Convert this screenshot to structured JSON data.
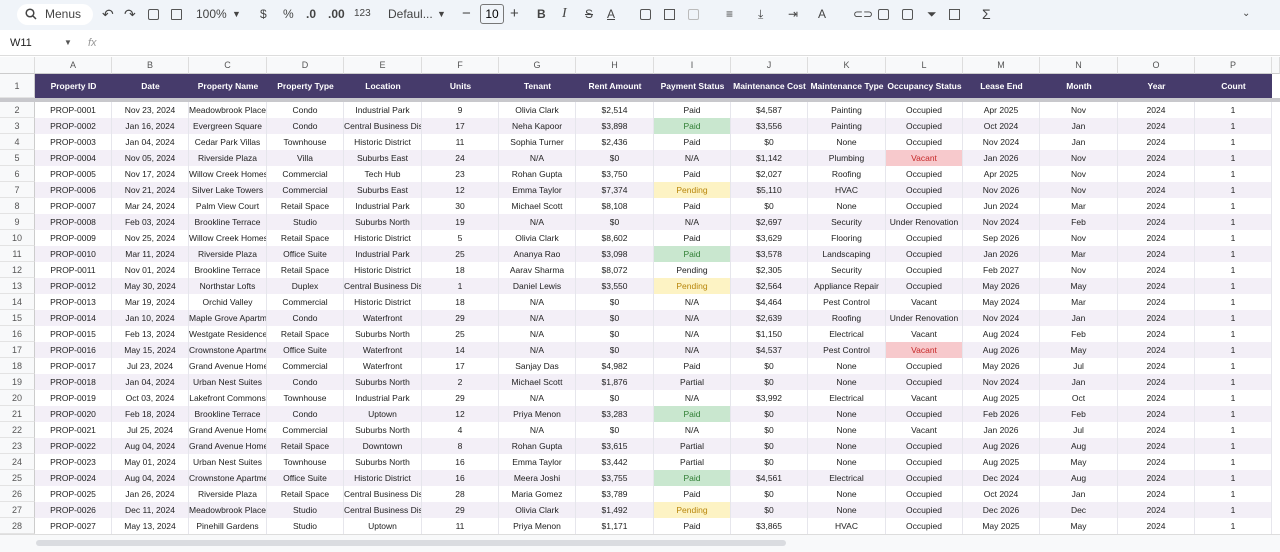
{
  "toolbar": {
    "search": "Menus",
    "zoom": "100%",
    "currency": "$",
    "percent": "%",
    "decimal_decrease": ".0",
    "decimal_increase": ".00",
    "number_format": "123",
    "font": "Defaul...",
    "font_size": "10"
  },
  "formula_bar": {
    "name_box": "W11",
    "fx": "fx"
  },
  "sheet": {
    "column_letters": [
      "A",
      "B",
      "C",
      "D",
      "E",
      "F",
      "G",
      "H",
      "I",
      "J",
      "K",
      "L",
      "M",
      "N",
      "O",
      "P"
    ],
    "row_numbers": [
      1,
      2,
      3,
      4,
      5,
      6,
      7,
      8,
      9,
      10,
      11,
      12,
      13,
      14,
      15,
      16,
      17,
      18,
      19,
      20,
      21,
      22,
      23,
      24,
      25,
      26,
      27,
      28
    ],
    "header_color": "#463b6b",
    "row_colors": [
      "#ffffff",
      "#f3eff7"
    ]
  },
  "table": {
    "headers": [
      "Property ID",
      "Date",
      "Property Name",
      "Property Type",
      "Location",
      "Units",
      "Tenant",
      "Rent Amount",
      "Payment Status",
      "Maintenance Cost",
      "Maintenance Type",
      "Occupancy Status",
      "Lease End",
      "Month",
      "Year",
      "Count"
    ],
    "rows": [
      [
        "PROP-0001",
        "Nov 23, 2024",
        "Meadowbrook Place",
        "Condo",
        "Industrial Park",
        9,
        "Olivia Clark",
        "$2,514",
        "Paid",
        "$4,587",
        "Painting",
        "Occupied",
        "Apr 2025",
        "Nov",
        2024,
        1
      ],
      [
        "PROP-0002",
        "Jan 16, 2024",
        "Evergreen Square",
        "Condo",
        "Central Business District",
        17,
        "Neha Kapoor",
        "$3,898",
        "Paid",
        "$3,556",
        "Painting",
        "Occupied",
        "Oct 2024",
        "Jan",
        2024,
        1
      ],
      [
        "PROP-0003",
        "Jan 04, 2024",
        "Cedar Park Villas",
        "Townhouse",
        "Historic District",
        11,
        "Sophia Turner",
        "$2,436",
        "Paid",
        "$0",
        "None",
        "Occupied",
        "Nov 2024",
        "Jan",
        2024,
        1
      ],
      [
        "PROP-0004",
        "Nov 05, 2024",
        "Riverside Plaza",
        "Villa",
        "Suburbs East",
        24,
        "N/A",
        "$0",
        "N/A",
        "$1,142",
        "Plumbing",
        "Vacant",
        "Jan 2026",
        "Nov",
        2024,
        1
      ],
      [
        "PROP-0005",
        "Nov 17, 2024",
        "Willow Creek Homes",
        "Commercial",
        "Tech Hub",
        23,
        "Rohan Gupta",
        "$3,750",
        "Paid",
        "$2,027",
        "Roofing",
        "Occupied",
        "Apr 2025",
        "Nov",
        2024,
        1
      ],
      [
        "PROP-0006",
        "Nov 21, 2024",
        "Silver Lake Towers",
        "Commercial",
        "Suburbs East",
        12,
        "Emma Taylor",
        "$7,374",
        "Pending",
        "$5,110",
        "HVAC",
        "Occupied",
        "Nov 2026",
        "Nov",
        2024,
        1
      ],
      [
        "PROP-0007",
        "Mar 24, 2024",
        "Palm View Court",
        "Retail Space",
        "Industrial Park",
        30,
        "Michael Scott",
        "$8,108",
        "Paid",
        "$0",
        "None",
        "Occupied",
        "Jun 2024",
        "Mar",
        2024,
        1
      ],
      [
        "PROP-0008",
        "Feb 03, 2024",
        "Brookline Terrace",
        "Studio",
        "Suburbs North",
        19,
        "N/A",
        "$0",
        "N/A",
        "$2,697",
        "Security",
        "Under Renovation",
        "Nov 2024",
        "Feb",
        2024,
        1
      ],
      [
        "PROP-0009",
        "Nov 25, 2024",
        "Willow Creek Homes",
        "Retail Space",
        "Historic District",
        5,
        "Olivia Clark",
        "$8,602",
        "Paid",
        "$3,629",
        "Flooring",
        "Occupied",
        "Sep 2026",
        "Nov",
        2024,
        1
      ],
      [
        "PROP-0010",
        "Mar 11, 2024",
        "Riverside Plaza",
        "Office Suite",
        "Industrial Park",
        25,
        "Ananya Rao",
        "$3,098",
        "Paid",
        "$3,578",
        "Landscaping",
        "Occupied",
        "Jan 2026",
        "Mar",
        2024,
        1
      ],
      [
        "PROP-0011",
        "Nov 01, 2024",
        "Brookline Terrace",
        "Retail Space",
        "Historic District",
        18,
        "Aarav Sharma",
        "$8,072",
        "Pending",
        "$2,305",
        "Security",
        "Occupied",
        "Feb 2027",
        "Nov",
        2024,
        1
      ],
      [
        "PROP-0012",
        "May 30, 2024",
        "Northstar Lofts",
        "Duplex",
        "Central Business District",
        1,
        "Daniel Lewis",
        "$3,550",
        "Pending",
        "$2,564",
        "Appliance Repair",
        "Occupied",
        "May 2026",
        "May",
        2024,
        1
      ],
      [
        "PROP-0013",
        "Mar 19, 2024",
        "Orchid Valley",
        "Commercial",
        "Historic District",
        18,
        "N/A",
        "$0",
        "N/A",
        "$4,464",
        "Pest Control",
        "Vacant",
        "May 2024",
        "Mar",
        2024,
        1
      ],
      [
        "PROP-0014",
        "Jan 10, 2024",
        "Maple Grove Apartments",
        "Condo",
        "Waterfront",
        29,
        "N/A",
        "$0",
        "N/A",
        "$2,639",
        "Roofing",
        "Under Renovation",
        "Nov 2024",
        "Jan",
        2024,
        1
      ],
      [
        "PROP-0015",
        "Feb 13, 2024",
        "Westgate Residences",
        "Retail Space",
        "Suburbs North",
        25,
        "N/A",
        "$0",
        "N/A",
        "$1,150",
        "Electrical",
        "Vacant",
        "Aug 2024",
        "Feb",
        2024,
        1
      ],
      [
        "PROP-0016",
        "May 15, 2024",
        "Crownstone Apartments",
        "Office Suite",
        "Waterfront",
        14,
        "N/A",
        "$0",
        "N/A",
        "$4,537",
        "Pest Control",
        "Vacant",
        "Aug 2026",
        "May",
        2024,
        1
      ],
      [
        "PROP-0017",
        "Jul 23, 2024",
        "Grand Avenue Homes",
        "Commercial",
        "Waterfront",
        17,
        "Sanjay Das",
        "$4,982",
        "Paid",
        "$0",
        "None",
        "Occupied",
        "May 2026",
        "Jul",
        2024,
        1
      ],
      [
        "PROP-0018",
        "Jan 04, 2024",
        "Urban Nest Suites",
        "Condo",
        "Suburbs North",
        2,
        "Michael Scott",
        "$1,876",
        "Partial",
        "$0",
        "None",
        "Occupied",
        "Nov 2024",
        "Jan",
        2024,
        1
      ],
      [
        "PROP-0019",
        "Oct 03, 2024",
        "Lakefront Commons",
        "Townhouse",
        "Industrial Park",
        29,
        "N/A",
        "$0",
        "N/A",
        "$3,992",
        "Electrical",
        "Vacant",
        "Aug 2025",
        "Oct",
        2024,
        1
      ],
      [
        "PROP-0020",
        "Feb 18, 2024",
        "Brookline Terrace",
        "Condo",
        "Uptown",
        12,
        "Priya Menon",
        "$3,283",
        "Paid",
        "$0",
        "None",
        "Occupied",
        "Feb 2026",
        "Feb",
        2024,
        1
      ],
      [
        "PROP-0021",
        "Jul 25, 2024",
        "Grand Avenue Homes",
        "Commercial",
        "Suburbs North",
        4,
        "N/A",
        "$0",
        "N/A",
        "$0",
        "None",
        "Vacant",
        "Jan 2026",
        "Jul",
        2024,
        1
      ],
      [
        "PROP-0022",
        "Aug 04, 2024",
        "Grand Avenue Homes",
        "Retail Space",
        "Downtown",
        8,
        "Rohan Gupta",
        "$3,615",
        "Partial",
        "$0",
        "None",
        "Occupied",
        "Aug 2026",
        "Aug",
        2024,
        1
      ],
      [
        "PROP-0023",
        "May 01, 2024",
        "Urban Nest Suites",
        "Townhouse",
        "Suburbs North",
        16,
        "Emma Taylor",
        "$3,442",
        "Partial",
        "$0",
        "None",
        "Occupied",
        "Aug 2025",
        "May",
        2024,
        1
      ],
      [
        "PROP-0024",
        "Aug 04, 2024",
        "Crownstone Apartments",
        "Office Suite",
        "Historic District",
        16,
        "Meera Joshi",
        "$3,755",
        "Paid",
        "$4,561",
        "Electrical",
        "Occupied",
        "Dec 2024",
        "Aug",
        2024,
        1
      ],
      [
        "PROP-0025",
        "Jan 26, 2024",
        "Riverside Plaza",
        "Retail Space",
        "Central Business District",
        28,
        "Maria Gomez",
        "$3,789",
        "Paid",
        "$0",
        "None",
        "Occupied",
        "Oct 2024",
        "Jan",
        2024,
        1
      ],
      [
        "PROP-0026",
        "Dec 11, 2024",
        "Meadowbrook Place",
        "Studio",
        "Central Business District",
        29,
        "Olivia Clark",
        "$1,492",
        "Pending",
        "$0",
        "None",
        "Occupied",
        "Dec 2026",
        "Dec",
        2024,
        1
      ],
      [
        "PROP-0027",
        "May 13, 2024",
        "Pinehill Gardens",
        "Studio",
        "Uptown",
        11,
        "Priya Menon",
        "$1,171",
        "Paid",
        "$3,865",
        "HVAC",
        "Occupied",
        "May 2025",
        "May",
        2024,
        1
      ]
    ],
    "cell_fills": {
      "table.rows.1.8": {
        "fill": "#c9e7cf",
        "color": "#2e7d32"
      },
      "table.rows.9.8": {
        "fill": "#c9e7cf",
        "color": "#2e7d32"
      },
      "table.rows.19.8": {
        "fill": "#c9e7cf",
        "color": "#2e7d32"
      },
      "table.rows.23.8": {
        "fill": "#c9e7cf",
        "color": "#2e7d32"
      },
      "table.rows.5.8": {
        "fill": "#fdf3c4",
        "color": "#b8860b"
      },
      "table.rows.11.8": {
        "fill": "#fdf3c4",
        "color": "#b8860b"
      },
      "table.rows.25.8": {
        "fill": "#fdf3c4",
        "color": "#b8860b"
      },
      "table.rows.3.11": {
        "fill": "#f7c9cc",
        "color": "#c62828"
      },
      "table.rows.15.11": {
        "fill": "#f7c9cc",
        "color": "#c62828"
      }
    }
  }
}
